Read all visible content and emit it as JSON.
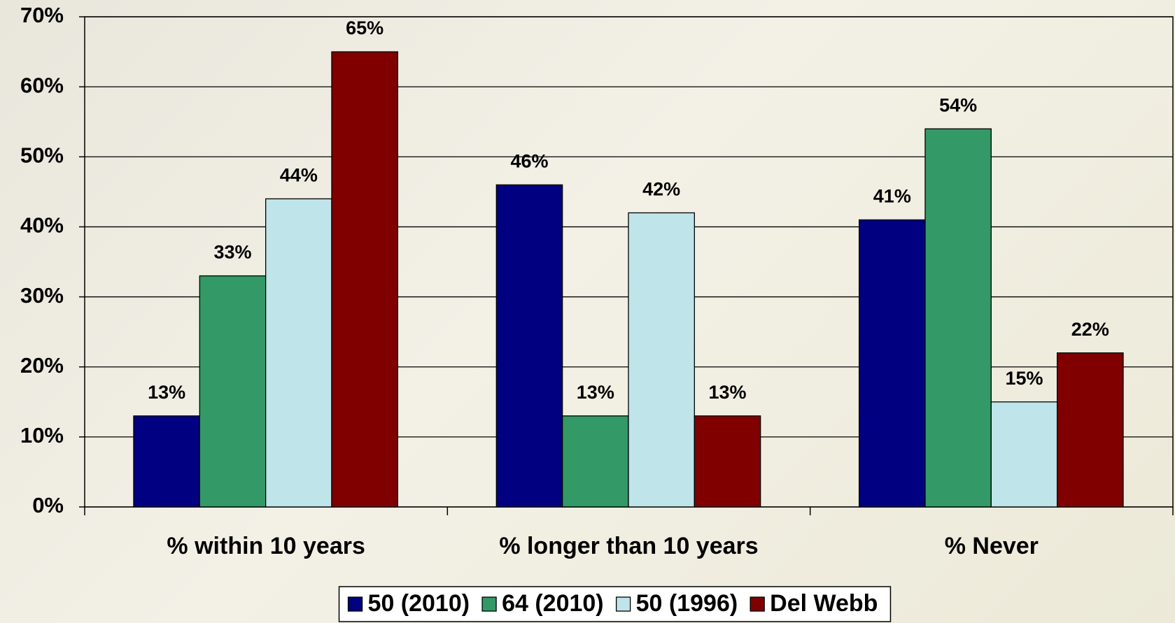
{
  "chart_data": {
    "type": "bar",
    "categories": [
      "% within 10 years",
      "% longer than 10 years",
      "% Never"
    ],
    "series": [
      {
        "name": "50 (2010)",
        "color": "#000080",
        "values": [
          13,
          46,
          41
        ],
        "value_labels": [
          "13%",
          "46%",
          "41%"
        ]
      },
      {
        "name": "64 (2010)",
        "color": "#339966",
        "values": [
          33,
          13,
          54
        ],
        "value_labels": [
          "33%",
          "13%",
          "54%"
        ]
      },
      {
        "name": "50 (1996)",
        "color": "#bfe4ea",
        "values": [
          44,
          42,
          15
        ],
        "value_labels": [
          "44%",
          "42%",
          "15%"
        ]
      },
      {
        "name": "Del Webb",
        "color": "#800000",
        "values": [
          65,
          13,
          22
        ],
        "value_labels": [
          "65%",
          "13%",
          "22%"
        ]
      }
    ],
    "ylim": [
      0,
      70
    ],
    "yticks": [
      {
        "value": 0,
        "label": "0%"
      },
      {
        "value": 10,
        "label": "10%"
      },
      {
        "value": 20,
        "label": "20%"
      },
      {
        "value": 30,
        "label": "30%"
      },
      {
        "value": 40,
        "label": "40%"
      },
      {
        "value": 50,
        "label": "50%"
      },
      {
        "value": 60,
        "label": "60%"
      },
      {
        "value": 70,
        "label": "70%"
      }
    ],
    "grid": true,
    "legend": "bottom"
  }
}
